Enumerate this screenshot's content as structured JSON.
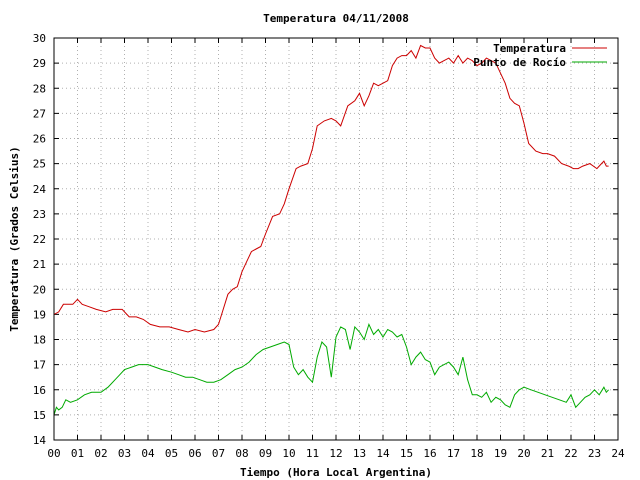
{
  "chart_data": {
    "type": "line",
    "title": "Temperatura 04/11/2008",
    "xlabel": "Tiempo (Hora Local Argentina)",
    "ylabel": "Temperatura (Grados Celsius)",
    "xlim": [
      0,
      24
    ],
    "ylim": [
      14,
      30
    ],
    "x_ticks": [
      "00",
      "01",
      "02",
      "03",
      "04",
      "05",
      "06",
      "07",
      "08",
      "09",
      "10",
      "11",
      "12",
      "13",
      "14",
      "15",
      "16",
      "17",
      "18",
      "19",
      "20",
      "21",
      "22",
      "23",
      "24"
    ],
    "y_ticks": [
      "14",
      "15",
      "16",
      "17",
      "18",
      "19",
      "20",
      "21",
      "22",
      "23",
      "24",
      "25",
      "26",
      "27",
      "28",
      "29",
      "30"
    ],
    "grid": true,
    "legend_position": "top-right",
    "colors": {
      "Temperatura": "#cc0000",
      "Punto de Rocío": "#00aa00"
    },
    "series": [
      {
        "name": "Temperatura",
        "x": [
          0.0,
          0.2,
          0.4,
          0.6,
          0.8,
          1.0,
          1.2,
          1.5,
          1.8,
          2.2,
          2.5,
          2.9,
          3.2,
          3.5,
          3.8,
          4.1,
          4.5,
          4.9,
          5.3,
          5.7,
          6.0,
          6.4,
          6.8,
          7.0,
          7.2,
          7.4,
          7.6,
          7.8,
          8.0,
          8.2,
          8.4,
          8.6,
          8.8,
          9.0,
          9.3,
          9.6,
          9.8,
          10.0,
          10.3,
          10.5,
          10.8,
          11.0,
          11.2,
          11.5,
          11.8,
          12.0,
          12.2,
          12.5,
          12.8,
          13.0,
          13.2,
          13.4,
          13.6,
          13.8,
          14.0,
          14.2,
          14.4,
          14.6,
          14.8,
          15.0,
          15.2,
          15.4,
          15.6,
          15.8,
          16.0,
          16.2,
          16.4,
          16.6,
          16.8,
          17.0,
          17.2,
          17.4,
          17.6,
          17.8,
          18.0,
          18.2,
          18.4,
          18.6,
          18.8,
          19.0,
          19.2,
          19.4,
          19.6,
          19.8,
          20.0,
          20.2,
          20.5,
          20.8,
          21.0,
          21.3,
          21.6,
          21.9,
          22.1,
          22.3,
          22.5,
          22.8,
          23.1,
          23.3,
          23.4,
          23.5,
          23.6
        ],
        "values": [
          19.0,
          19.1,
          19.4,
          19.4,
          19.4,
          19.6,
          19.4,
          19.3,
          19.2,
          19.1,
          19.2,
          19.2,
          18.9,
          18.9,
          18.8,
          18.6,
          18.5,
          18.5,
          18.4,
          18.3,
          18.4,
          18.3,
          18.4,
          18.6,
          19.2,
          19.8,
          20.0,
          20.1,
          20.7,
          21.1,
          21.5,
          21.6,
          21.7,
          22.2,
          22.9,
          23.0,
          23.4,
          24.0,
          24.8,
          24.9,
          25.0,
          25.6,
          26.5,
          26.7,
          26.8,
          26.7,
          26.5,
          27.3,
          27.5,
          27.8,
          27.3,
          27.7,
          28.2,
          28.1,
          28.2,
          28.3,
          28.9,
          29.2,
          29.3,
          29.3,
          29.5,
          29.2,
          29.7,
          29.6,
          29.6,
          29.2,
          29.0,
          29.1,
          29.2,
          29.0,
          29.3,
          29.0,
          29.2,
          29.1,
          28.9,
          29.0,
          29.2,
          29.1,
          29.0,
          28.6,
          28.2,
          27.6,
          27.4,
          27.3,
          26.6,
          25.8,
          25.5,
          25.4,
          25.4,
          25.3,
          25.0,
          24.9,
          24.8,
          24.8,
          24.9,
          25.0,
          24.8,
          25.0,
          25.1,
          24.9,
          24.9
        ]
      },
      {
        "name": "Punto de Rocío",
        "x": [
          0.0,
          0.1,
          0.2,
          0.35,
          0.5,
          0.7,
          1.0,
          1.3,
          1.6,
          2.0,
          2.3,
          2.6,
          2.8,
          3.0,
          3.3,
          3.6,
          4.0,
          4.3,
          4.6,
          5.0,
          5.3,
          5.6,
          5.9,
          6.2,
          6.5,
          6.8,
          7.1,
          7.4,
          7.7,
          8.0,
          8.3,
          8.6,
          8.9,
          9.2,
          9.5,
          9.8,
          10.0,
          10.2,
          10.4,
          10.6,
          10.8,
          11.0,
          11.2,
          11.4,
          11.6,
          11.8,
          12.0,
          12.2,
          12.4,
          12.6,
          12.8,
          13.0,
          13.2,
          13.4,
          13.6,
          13.8,
          14.0,
          14.2,
          14.4,
          14.6,
          14.8,
          15.0,
          15.2,
          15.4,
          15.6,
          15.8,
          16.0,
          16.2,
          16.4,
          16.6,
          16.8,
          17.0,
          17.2,
          17.4,
          17.6,
          17.8,
          18.0,
          18.2,
          18.4,
          18.6,
          18.8,
          19.0,
          19.2,
          19.4,
          19.6,
          19.8,
          20.0,
          20.3,
          20.6,
          20.9,
          21.2,
          21.5,
          21.8,
          22.0,
          22.2,
          22.4,
          22.6,
          22.8,
          23.0,
          23.2,
          23.4,
          23.5,
          23.6
        ],
        "values": [
          15.0,
          15.3,
          15.2,
          15.3,
          15.6,
          15.5,
          15.6,
          15.8,
          15.9,
          15.9,
          16.1,
          16.4,
          16.6,
          16.8,
          16.9,
          17.0,
          17.0,
          16.9,
          16.8,
          16.7,
          16.6,
          16.5,
          16.5,
          16.4,
          16.3,
          16.3,
          16.4,
          16.6,
          16.8,
          16.9,
          17.1,
          17.4,
          17.6,
          17.7,
          17.8,
          17.9,
          17.8,
          16.9,
          16.6,
          16.8,
          16.5,
          16.3,
          17.3,
          17.9,
          17.7,
          16.5,
          18.1,
          18.5,
          18.4,
          17.6,
          18.5,
          18.3,
          18.0,
          18.6,
          18.2,
          18.4,
          18.1,
          18.4,
          18.3,
          18.1,
          18.2,
          17.7,
          17.0,
          17.3,
          17.5,
          17.2,
          17.1,
          16.6,
          16.9,
          17.0,
          17.1,
          16.9,
          16.6,
          17.3,
          16.4,
          15.8,
          15.8,
          15.7,
          15.9,
          15.5,
          15.7,
          15.6,
          15.4,
          15.3,
          15.8,
          16.0,
          16.1,
          16.0,
          15.9,
          15.8,
          15.7,
          15.6,
          15.5,
          15.8,
          15.3,
          15.5,
          15.7,
          15.8,
          16.0,
          15.8,
          16.1,
          15.9,
          16.0
        ]
      }
    ]
  }
}
